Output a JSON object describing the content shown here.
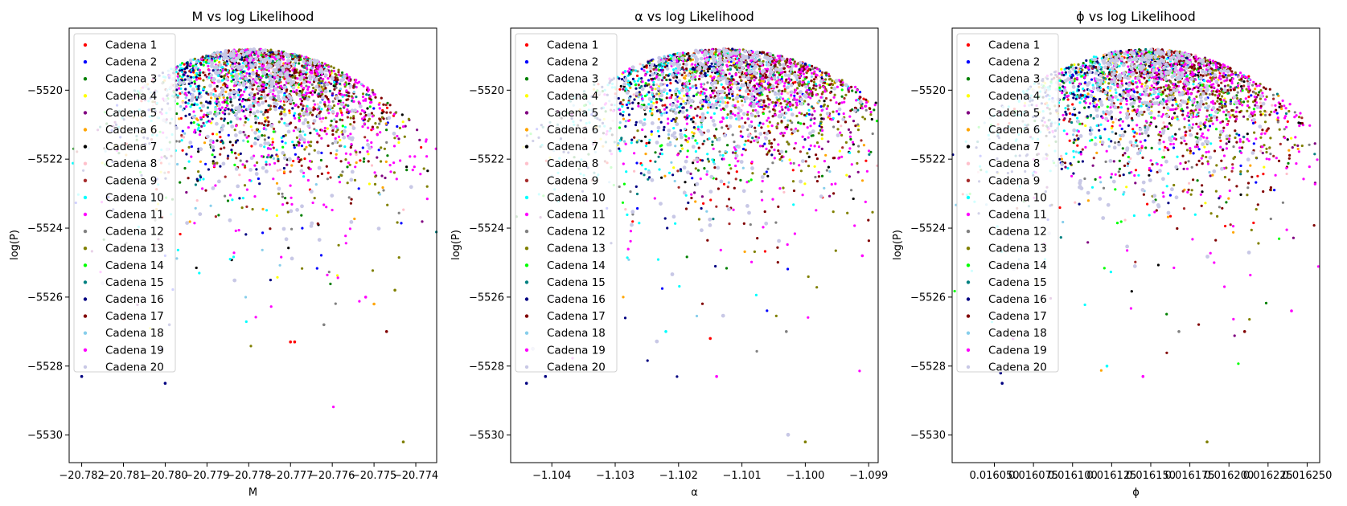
{
  "legend_entries": [
    "Cadena 1",
    "Cadena 2",
    "Cadena 3",
    "Cadena 4",
    "Cadena 5",
    "Cadena 6",
    "Cadena 7",
    "Cadena 8",
    "Cadena 9",
    "Cadena 10",
    "Cadena 11",
    "Cadena 12",
    "Cadena 13",
    "Cadena 14",
    "Cadena 15",
    "Cadena 16",
    "Cadena 17",
    "Cadena 18",
    "Cadena 19",
    "Cadena 20"
  ],
  "series_colors": [
    "#ff0000",
    "#0000ff",
    "#008000",
    "#ffff00",
    "#800080",
    "#ffa500",
    "#000000",
    "#ffc0cb",
    "#a52a2a",
    "#00ffff",
    "#ff00ff",
    "#808080",
    "#808000",
    "#00ff00",
    "#008080",
    "#000080",
    "#800000",
    "#87ceeb",
    "#ff00ff",
    "#c8c8e6"
  ],
  "chart_data": [
    {
      "type": "scatter",
      "title": "M vs log Likelihood",
      "xlabel": "M",
      "ylabel": "log(P)",
      "xlim": [
        -20.7823,
        -20.7735
      ],
      "ylim": [
        -5530.8,
        -5518.2
      ],
      "xticks": [
        -20.782,
        -20.781,
        -20.78,
        -20.779,
        -20.778,
        -20.777,
        -20.776,
        -20.775,
        -20.774
      ],
      "xtick_labels": [
        "−20.782",
        "−20.781",
        "−20.780",
        "−20.779",
        "−20.778",
        "−20.777",
        "−20.776",
        "−20.775",
        "−20.774"
      ],
      "yticks": [
        -5520,
        -5522,
        -5524,
        -5526,
        -5528,
        -5530
      ],
      "ytick_labels": [
        "−5520",
        "−5522",
        "−5524",
        "−5526",
        "−5528",
        "−5530"
      ],
      "legend_position": "upper left",
      "peak": {
        "x": -20.7779,
        "y": -5518.8
      },
      "x_halfwidth": 0.0038,
      "outliers": [
        {
          "x": -20.782,
          "y": -5528.3,
          "series": 16
        },
        {
          "x": -20.78,
          "y": -5528.5,
          "series": 16
        },
        {
          "x": -20.7801,
          "y": -5527.5,
          "series": 16
        },
        {
          "x": -20.7799,
          "y": -5526.8,
          "series": 16
        },
        {
          "x": -20.7743,
          "y": -5530.2,
          "series": 13
        },
        {
          "x": -20.7745,
          "y": -5525.8,
          "series": 13
        },
        {
          "x": -20.7747,
          "y": -5527.0,
          "series": 17
        },
        {
          "x": -20.777,
          "y": -5527.3,
          "series": 1
        },
        {
          "x": -20.7769,
          "y": -5527.3,
          "series": 1
        },
        {
          "x": -20.7762,
          "y": -5526.8,
          "series": 12
        },
        {
          "x": -20.775,
          "y": -5526.2,
          "series": 6
        },
        {
          "x": -20.7752,
          "y": -5526.0,
          "series": 11
        },
        {
          "x": -20.781,
          "y": -5526.0,
          "series": 20
        },
        {
          "x": -20.7815,
          "y": -5525.6,
          "series": 20
        }
      ],
      "series": [
        {
          "name": "Cadena 1",
          "x_center": -20.7778,
          "x_spread": 0.0016,
          "count": 90
        },
        {
          "name": "Cadena 2",
          "x_center": -20.7777,
          "x_spread": 0.0018,
          "count": 90
        },
        {
          "name": "Cadena 3",
          "x_center": -20.7778,
          "x_spread": 0.0017,
          "count": 90
        },
        {
          "name": "Cadena 4",
          "x_center": -20.7779,
          "x_spread": 0.0016,
          "count": 70
        },
        {
          "name": "Cadena 5",
          "x_center": -20.7776,
          "x_spread": 0.0018,
          "count": 90
        },
        {
          "name": "Cadena 6",
          "x_center": -20.7778,
          "x_spread": 0.0018,
          "count": 70
        },
        {
          "name": "Cadena 7",
          "x_center": -20.7778,
          "x_spread": 0.0016,
          "count": 90
        },
        {
          "name": "Cadena 8",
          "x_center": -20.778,
          "x_spread": 0.0017,
          "count": 60
        },
        {
          "name": "Cadena 9",
          "x_center": -20.7774,
          "x_spread": 0.0016,
          "count": 100
        },
        {
          "name": "Cadena 10",
          "x_center": -20.7784,
          "x_spread": 0.0013,
          "count": 220
        },
        {
          "name": "Cadena 11",
          "x_center": -20.7766,
          "x_spread": 0.0013,
          "count": 200
        },
        {
          "name": "Cadena 12",
          "x_center": -20.7771,
          "x_spread": 0.0016,
          "count": 90
        },
        {
          "name": "Cadena 13",
          "x_center": -20.7767,
          "x_spread": 0.0012,
          "count": 220
        },
        {
          "name": "Cadena 14",
          "x_center": -20.7782,
          "x_spread": 0.0016,
          "count": 60
        },
        {
          "name": "Cadena 15",
          "x_center": -20.778,
          "x_spread": 0.0017,
          "count": 80
        },
        {
          "name": "Cadena 16",
          "x_center": -20.7787,
          "x_spread": 0.0012,
          "count": 170
        },
        {
          "name": "Cadena 17",
          "x_center": -20.7769,
          "x_spread": 0.0011,
          "count": 240
        },
        {
          "name": "Cadena 18",
          "x_center": -20.7783,
          "x_spread": 0.0014,
          "count": 90
        },
        {
          "name": "Cadena 19",
          "x_center": -20.7772,
          "x_spread": 0.0016,
          "count": 240
        },
        {
          "name": "Cadena 20",
          "x_center": -20.7777,
          "x_spread": 0.0011,
          "count": 320
        }
      ]
    },
    {
      "type": "scatter",
      "title": "α vs log Likelihood",
      "xlabel": "α",
      "ylabel": "log(P)",
      "xlim": [
        -1.10465,
        -1.09885
      ],
      "ylim": [
        -5530.8,
        -5518.2
      ],
      "xticks": [
        -1.104,
        -1.103,
        -1.102,
        -1.101,
        -1.1,
        -1.099
      ],
      "xtick_labels": [
        "−1.104",
        "−1.103",
        "−1.102",
        "−1.101",
        "−1.100",
        "−1.099"
      ],
      "yticks": [
        -5520,
        -5522,
        -5524,
        -5526,
        -5528,
        -5530
      ],
      "ytick_labels": [
        "−5520",
        "−5522",
        "−5524",
        "−5526",
        "−5528",
        "−5530"
      ],
      "legend_position": "upper left",
      "peak": {
        "x": -1.1013,
        "y": -5518.8
      },
      "x_halfwidth": 0.0029,
      "outliers": [
        {
          "x": -1.1044,
          "y": -5528.5,
          "series": 16
        },
        {
          "x": -1.1041,
          "y": -5528.3,
          "series": 16
        },
        {
          "x": -1.1,
          "y": -5530.2,
          "series": 13
        },
        {
          "x": -1.1014,
          "y": -5528.3,
          "series": 19
        },
        {
          "x": -1.1015,
          "y": -5527.2,
          "series": 1
        },
        {
          "x": -1.1022,
          "y": -5527.0,
          "series": 10
        },
        {
          "x": -1.1003,
          "y": -5527.0,
          "series": 12
        },
        {
          "x": -1.0991,
          "y": -5524.8,
          "series": 11
        },
        {
          "x": -1.1043,
          "y": -5527.5,
          "series": 20
        },
        {
          "x": -1.104,
          "y": -5526.0,
          "series": 20
        }
      ],
      "series": [
        {
          "name": "Cadena 1",
          "x_center": -1.1013,
          "x_spread": 0.0012,
          "count": 90
        },
        {
          "name": "Cadena 2",
          "x_center": -1.1012,
          "x_spread": 0.0013,
          "count": 90
        },
        {
          "name": "Cadena 3",
          "x_center": -1.1013,
          "x_spread": 0.0012,
          "count": 90
        },
        {
          "name": "Cadena 4",
          "x_center": -1.1014,
          "x_spread": 0.0012,
          "count": 70
        },
        {
          "name": "Cadena 5",
          "x_center": -1.101,
          "x_spread": 0.0013,
          "count": 90
        },
        {
          "name": "Cadena 6",
          "x_center": -1.1013,
          "x_spread": 0.0013,
          "count": 70
        },
        {
          "name": "Cadena 7",
          "x_center": -1.1013,
          "x_spread": 0.0012,
          "count": 90
        },
        {
          "name": "Cadena 8",
          "x_center": -1.1015,
          "x_spread": 0.0013,
          "count": 60
        },
        {
          "name": "Cadena 9",
          "x_center": -1.1009,
          "x_spread": 0.0012,
          "count": 100
        },
        {
          "name": "Cadena 10",
          "x_center": -1.1019,
          "x_spread": 0.001,
          "count": 220
        },
        {
          "name": "Cadena 11",
          "x_center": -1.1006,
          "x_spread": 0.001,
          "count": 200
        },
        {
          "name": "Cadena 12",
          "x_center": -1.1007,
          "x_spread": 0.0012,
          "count": 90
        },
        {
          "name": "Cadena 13",
          "x_center": -1.1005,
          "x_spread": 0.0009,
          "count": 220
        },
        {
          "name": "Cadena 14",
          "x_center": -1.1016,
          "x_spread": 0.0012,
          "count": 60
        },
        {
          "name": "Cadena 15",
          "x_center": -1.1015,
          "x_spread": 0.0013,
          "count": 80
        },
        {
          "name": "Cadena 16",
          "x_center": -1.1022,
          "x_spread": 0.0009,
          "count": 170
        },
        {
          "name": "Cadena 17",
          "x_center": -1.1007,
          "x_spread": 0.0008,
          "count": 240
        },
        {
          "name": "Cadena 18",
          "x_center": -1.1018,
          "x_spread": 0.0011,
          "count": 90
        },
        {
          "name": "Cadena 19",
          "x_center": -1.1008,
          "x_spread": 0.0012,
          "count": 240
        },
        {
          "name": "Cadena 20",
          "x_center": -1.1013,
          "x_spread": 0.0008,
          "count": 320
        }
      ]
    },
    {
      "type": "scatter",
      "title": "ϕ vs log Likelihood",
      "xlabel": "ϕ",
      "ylabel": "log(P)",
      "xlim": [
        0.016023,
        0.016258
      ],
      "ylim": [
        -5530.8,
        -5518.2
      ],
      "xticks": [
        0.01605,
        0.016075,
        0.0161,
        0.016125,
        0.01615,
        0.016175,
        0.0162,
        0.016225,
        0.01625
      ],
      "xtick_labels": [
        "0.016050",
        "0.016075",
        "0.016100",
        "0.016125",
        "0.016150",
        "0.016175",
        "0.016200",
        "0.016225",
        "0.016250"
      ],
      "yticks": [
        -5520,
        -5522,
        -5524,
        -5526,
        -5528,
        -5530
      ],
      "ytick_labels": [
        "−5520",
        "−5522",
        "−5524",
        "−5526",
        "−5528",
        "−5530"
      ],
      "legend_position": "upper left",
      "peak": {
        "x": 0.016148,
        "y": -5518.8
      },
      "x_halfwidth": 0.000105,
      "outliers": [
        {
          "x": 0.016055,
          "y": -5528.5,
          "series": 16
        },
        {
          "x": 0.016054,
          "y": -5528.2,
          "series": 16
        },
        {
          "x": 0.016186,
          "y": -5530.2,
          "series": 13
        },
        {
          "x": 0.016145,
          "y": -5528.3,
          "series": 19
        },
        {
          "x": 0.016122,
          "y": -5528.0,
          "series": 10
        },
        {
          "x": 0.01624,
          "y": -5526.4,
          "series": 11
        },
        {
          "x": 0.01621,
          "y": -5527.0,
          "series": 17
        },
        {
          "x": 0.016168,
          "y": -5527.0,
          "series": 12
        },
        {
          "x": 0.01605,
          "y": -5526.5,
          "series": 20
        },
        {
          "x": 0.016048,
          "y": -5525.5,
          "series": 20
        }
      ],
      "series": [
        {
          "name": "Cadena 1",
          "x_center": 0.016148,
          "x_spread": 4.5e-05,
          "count": 90
        },
        {
          "name": "Cadena 2",
          "x_center": 0.016152,
          "x_spread": 4.8e-05,
          "count": 90
        },
        {
          "name": "Cadena 3",
          "x_center": 0.016148,
          "x_spread": 4.5e-05,
          "count": 90
        },
        {
          "name": "Cadena 4",
          "x_center": 0.016145,
          "x_spread": 4.5e-05,
          "count": 70
        },
        {
          "name": "Cadena 5",
          "x_center": 0.016158,
          "x_spread": 4.8e-05,
          "count": 90
        },
        {
          "name": "Cadena 6",
          "x_center": 0.016148,
          "x_spread": 4.8e-05,
          "count": 70
        },
        {
          "name": "Cadena 7",
          "x_center": 0.016148,
          "x_spread": 4.5e-05,
          "count": 90
        },
        {
          "name": "Cadena 8",
          "x_center": 0.016142,
          "x_spread": 4.8e-05,
          "count": 60
        },
        {
          "name": "Cadena 9",
          "x_center": 0.016165,
          "x_spread": 4.5e-05,
          "count": 100
        },
        {
          "name": "Cadena 10",
          "x_center": 0.016118,
          "x_spread": 3.8e-05,
          "count": 220
        },
        {
          "name": "Cadena 11",
          "x_center": 0.016178,
          "x_spread": 3.8e-05,
          "count": 200
        },
        {
          "name": "Cadena 12",
          "x_center": 0.016168,
          "x_spread": 4.5e-05,
          "count": 90
        },
        {
          "name": "Cadena 13",
          "x_center": 0.016182,
          "x_spread": 3.4e-05,
          "count": 220
        },
        {
          "name": "Cadena 14",
          "x_center": 0.01614,
          "x_spread": 4.5e-05,
          "count": 60
        },
        {
          "name": "Cadena 15",
          "x_center": 0.016142,
          "x_spread": 4.8e-05,
          "count": 80
        },
        {
          "name": "Cadena 16",
          "x_center": 0.01611,
          "x_spread": 3.4e-05,
          "count": 170
        },
        {
          "name": "Cadena 17",
          "x_center": 0.016172,
          "x_spread": 3e-05,
          "count": 240
        },
        {
          "name": "Cadena 18",
          "x_center": 0.016122,
          "x_spread": 4e-05,
          "count": 90
        },
        {
          "name": "Cadena 19",
          "x_center": 0.016168,
          "x_spread": 4.5e-05,
          "count": 240
        },
        {
          "name": "Cadena 20",
          "x_center": 0.016148,
          "x_spread": 3e-05,
          "count": 320
        }
      ]
    }
  ]
}
